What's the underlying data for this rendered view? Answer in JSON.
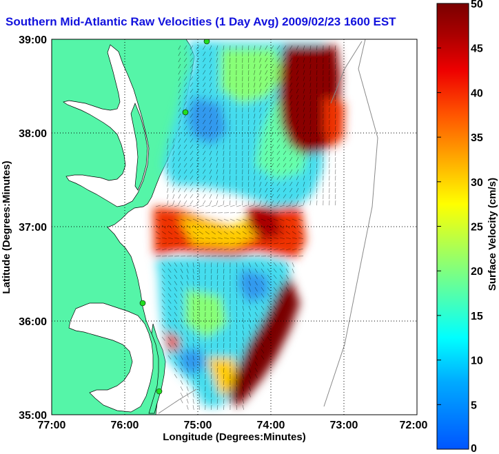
{
  "title": "Southern Mid-Atlantic Raw Velocities (1 Day Avg) 2009/02/23 1600 EST",
  "axes": {
    "xlabel": "Longitude (Degrees:Minutes)",
    "ylabel": "Latitude (Degrees:Minutes)",
    "x_ticks": [
      "77:00",
      "76:00",
      "75:00",
      "74:00",
      "73:00",
      "72:00"
    ],
    "y_ticks": [
      "39:00",
      "38:00",
      "37:00",
      "36:00",
      "35:00"
    ]
  },
  "colorbar": {
    "label": "Surface Velocity (cm/s)",
    "ticks": [
      "50",
      "45",
      "40",
      "35",
      "30",
      "25",
      "20",
      "15",
      "10",
      "5",
      "0"
    ],
    "min": 0,
    "max": 50
  },
  "colors": {
    "land": "#55f5a8",
    "water": "#ffffff",
    "title": "#1111dd",
    "station": "#22dd22"
  }
}
